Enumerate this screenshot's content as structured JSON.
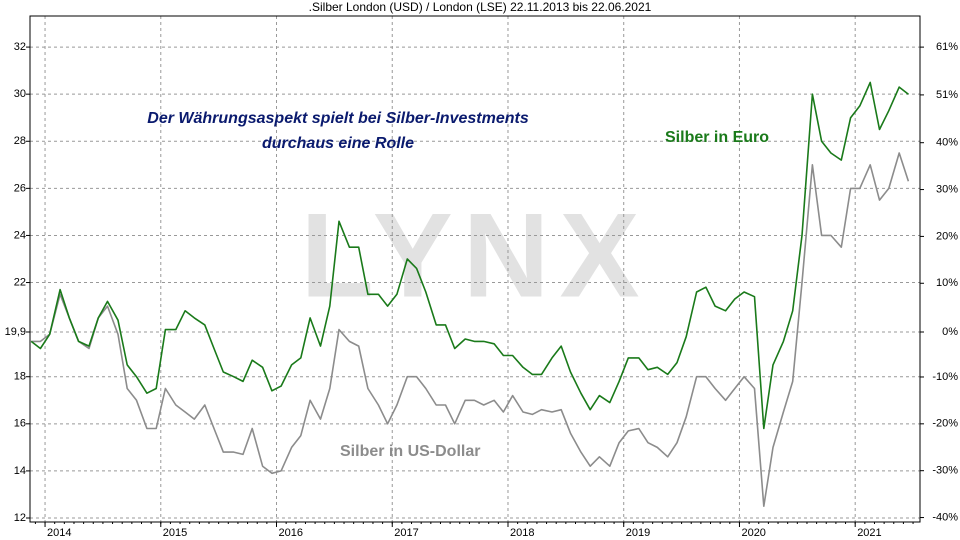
{
  "chart_data": {
    "type": "line",
    "title": ".Silber London (USD) / London (LSE) 22.11.2013 bis 22.06.2021",
    "annotation": [
      "Der Währungsaspekt spielt bei Silber-Investments",
      "durchaus eine Rolle"
    ],
    "watermark": "LYNX",
    "x": [
      2013.88,
      2013.96,
      2014.04,
      2014.13,
      2014.21,
      2014.29,
      2014.38,
      2014.46,
      2014.54,
      2014.63,
      2014.71,
      2014.79,
      2014.88,
      2014.96,
      2015.04,
      2015.13,
      2015.21,
      2015.29,
      2015.38,
      2015.46,
      2015.54,
      2015.63,
      2015.71,
      2015.79,
      2015.88,
      2015.96,
      2016.04,
      2016.13,
      2016.21,
      2016.29,
      2016.38,
      2016.46,
      2016.54,
      2016.63,
      2016.71,
      2016.79,
      2016.88,
      2016.96,
      2017.04,
      2017.13,
      2017.21,
      2017.29,
      2017.38,
      2017.46,
      2017.54,
      2017.63,
      2017.71,
      2017.79,
      2017.88,
      2017.96,
      2018.04,
      2018.13,
      2018.21,
      2018.29,
      2018.38,
      2018.46,
      2018.54,
      2018.63,
      2018.71,
      2018.79,
      2018.88,
      2018.96,
      2019.04,
      2019.13,
      2019.21,
      2019.29,
      2019.38,
      2019.46,
      2019.54,
      2019.63,
      2019.71,
      2019.79,
      2019.88,
      2019.96,
      2020.04,
      2020.13,
      2020.21,
      2020.29,
      2020.38,
      2020.46,
      2020.54,
      2020.63,
      2020.71,
      2020.79,
      2020.88,
      2020.96,
      2021.04,
      2021.13,
      2021.21,
      2021.29,
      2021.38,
      2021.46
    ],
    "series": [
      {
        "name": "Silber in US-Dollar",
        "color": "#8c8c8c",
        "values": [
          19.5,
          19.5,
          19.8,
          21.5,
          20.5,
          19.5,
          19.2,
          20.5,
          21,
          19.8,
          17.5,
          17,
          15.8,
          15.8,
          17.5,
          16.8,
          16.5,
          16.2,
          16.8,
          15.8,
          14.8,
          14.8,
          14.7,
          15.8,
          14.2,
          13.9,
          14,
          15,
          15.5,
          17,
          16.2,
          17.5,
          20,
          19.5,
          19.3,
          17.5,
          16.8,
          16,
          16.8,
          18,
          18,
          17.5,
          16.8,
          16.8,
          16,
          17,
          17,
          16.8,
          17,
          16.5,
          17.2,
          16.5,
          16.4,
          16.6,
          16.5,
          16.6,
          15.6,
          14.8,
          14.2,
          14.6,
          14.2,
          15.2,
          15.7,
          15.8,
          15.2,
          15,
          14.6,
          15.2,
          16.3,
          18,
          18,
          17.5,
          17,
          17.5,
          18,
          17.5,
          12.5,
          15,
          16.5,
          17.8,
          22,
          27,
          24,
          24,
          23.5,
          26,
          26,
          27,
          25.5,
          26,
          27.5,
          26.3
        ]
      },
      {
        "name": "Silber in Euro",
        "color": "#1a7a1a",
        "values": [
          19.5,
          19.2,
          19.8,
          21.7,
          20.5,
          19.5,
          19.3,
          20.5,
          21.2,
          20.4,
          18.5,
          18,
          17.3,
          17.5,
          20,
          20,
          20.8,
          20.5,
          20.2,
          19.2,
          18.2,
          18,
          17.8,
          18.7,
          18.4,
          17.4,
          17.6,
          18.5,
          18.8,
          20.5,
          19.3,
          21,
          24.6,
          23.5,
          23.5,
          21.5,
          21.5,
          21,
          21.5,
          23,
          22.6,
          21.6,
          20.2,
          20.2,
          19.2,
          19.6,
          19.5,
          19.5,
          19.4,
          18.9,
          18.9,
          18.4,
          18.1,
          18.1,
          18.8,
          19.3,
          18.2,
          17.3,
          16.6,
          17.2,
          16.9,
          17.8,
          18.8,
          18.8,
          18.3,
          18.4,
          18.1,
          18.6,
          19.7,
          21.6,
          21.8,
          21,
          20.8,
          21.3,
          21.6,
          21.4,
          15.8,
          18.5,
          19.5,
          20.8,
          24,
          30,
          28,
          27.5,
          27.2,
          29,
          29.5,
          30.5,
          28.5,
          29.3,
          30.3,
          30
        ]
      }
    ],
    "xlim": [
      2013.87,
      2021.56
    ],
    "xticks": [
      2014,
      2015,
      2016,
      2017,
      2018,
      2019,
      2020,
      2021
    ],
    "ylim": [
      11.83,
      33.32
    ],
    "yticks": [
      12,
      14,
      16,
      18,
      {
        "value": 19.9,
        "label": "19,9"
      },
      22,
      24,
      26,
      28,
      30,
      32
    ],
    "y2lim": [
      -40.55,
      67.44
    ],
    "y2ticks": [
      {
        "value": -39.6,
        "label": "-40%"
      },
      {
        "value": -29.6,
        "label": "-30%"
      },
      {
        "value": -19.6,
        "label": "-20%"
      },
      {
        "value": -9.6,
        "label": "-10%"
      },
      {
        "value": 0,
        "label": "0%"
      },
      {
        "value": 10.4,
        "label": "10%"
      },
      {
        "value": 20.4,
        "label": "20%"
      },
      {
        "value": 30.4,
        "label": "30%"
      },
      {
        "value": 40.4,
        "label": "40%"
      },
      {
        "value": 50.6,
        "label": "51%"
      },
      {
        "value": 60.8,
        "label": "61%"
      }
    ],
    "grid": true
  }
}
